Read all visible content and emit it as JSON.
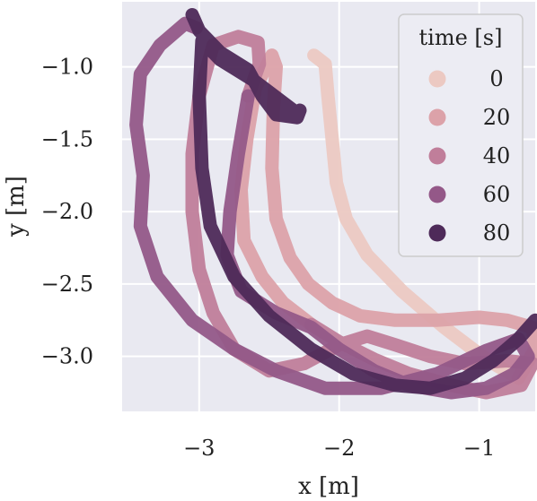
{
  "chart_data": {
    "type": "scatter",
    "title": "",
    "xlabel": "x [m]",
    "ylabel": "y [m]",
    "xlim": [
      -3.55,
      -0.6
    ],
    "ylim": [
      -3.38,
      -0.55
    ],
    "grid": true,
    "background": "#e9e9f1",
    "xticks": [
      {
        "value": -3,
        "label": "−3"
      },
      {
        "value": -2,
        "label": "−2"
      },
      {
        "value": -1,
        "label": "−1"
      }
    ],
    "yticks": [
      {
        "value": -1.0,
        "label": "−1.0"
      },
      {
        "value": -1.5,
        "label": "−1.5"
      },
      {
        "value": -2.0,
        "label": "−2.0"
      },
      {
        "value": -2.5,
        "label": "−2.5"
      },
      {
        "value": -3.0,
        "label": "−3.0"
      }
    ],
    "legend": {
      "title": "time [s]",
      "placement": "top-right",
      "entries": [
        {
          "label": "0",
          "color": "#ecc9c2"
        },
        {
          "label": "20",
          "color": "#dca2a9"
        },
        {
          "label": "40",
          "color": "#c07e9a"
        },
        {
          "label": "60",
          "color": "#945888"
        },
        {
          "label": "80",
          "color": "#4e2a59"
        }
      ]
    },
    "series": [
      {
        "color": "#ecc9c2",
        "points": [
          [
            -2.18,
            -0.92
          ],
          [
            -2.1,
            -0.98
          ],
          [
            -2.08,
            -1.2
          ],
          [
            -2.05,
            -1.5
          ],
          [
            -2.02,
            -1.8
          ],
          [
            -1.95,
            -2.05
          ],
          [
            -1.8,
            -2.3
          ],
          [
            -1.55,
            -2.55
          ],
          [
            -1.25,
            -2.8
          ],
          [
            -0.95,
            -3.02
          ],
          [
            -0.72,
            -3.15
          ]
        ]
      },
      {
        "color": "#dca2a9",
        "points": [
          [
            -0.72,
            -3.15
          ],
          [
            -0.6,
            -2.95
          ],
          [
            -0.62,
            -2.8
          ],
          [
            -0.8,
            -2.75
          ],
          [
            -1.0,
            -2.73
          ],
          [
            -1.3,
            -2.75
          ],
          [
            -1.6,
            -2.75
          ],
          [
            -1.85,
            -2.72
          ],
          [
            -2.05,
            -2.63
          ],
          [
            -2.22,
            -2.5
          ],
          [
            -2.35,
            -2.32
          ],
          [
            -2.45,
            -2.05
          ],
          [
            -2.48,
            -1.7
          ],
          [
            -2.47,
            -1.3
          ],
          [
            -2.45,
            -1.0
          ],
          [
            -2.48,
            -0.92
          ],
          [
            -2.6,
            -1.15
          ],
          [
            -2.66,
            -1.5
          ],
          [
            -2.7,
            -1.85
          ],
          [
            -2.68,
            -2.2
          ],
          [
            -2.55,
            -2.45
          ],
          [
            -2.4,
            -2.63
          ],
          [
            -2.2,
            -2.78
          ]
        ]
      },
      {
        "color": "#c07e9a",
        "points": [
          [
            -2.2,
            -2.78
          ],
          [
            -2.0,
            -2.9
          ],
          [
            -1.75,
            -3.02
          ],
          [
            -1.5,
            -3.12
          ],
          [
            -1.2,
            -3.2
          ],
          [
            -0.95,
            -3.25
          ],
          [
            -0.7,
            -3.2
          ],
          [
            -0.62,
            -3.05
          ],
          [
            -0.8,
            -3.03
          ],
          [
            -1.1,
            -3.05
          ],
          [
            -1.35,
            -3.0
          ],
          [
            -1.6,
            -2.92
          ],
          [
            -1.8,
            -2.86
          ],
          [
            -2.0,
            -2.92
          ],
          [
            -2.25,
            -3.05
          ],
          [
            -2.5,
            -3.1
          ],
          [
            -2.75,
            -2.95
          ],
          [
            -2.9,
            -2.7
          ],
          [
            -3.0,
            -2.4
          ],
          [
            -3.05,
            -2.0
          ],
          [
            -3.05,
            -1.6
          ],
          [
            -3.0,
            -1.2
          ],
          [
            -2.9,
            -0.85
          ],
          [
            -2.72,
            -0.79
          ],
          [
            -2.58,
            -0.83
          ],
          [
            -2.57,
            -0.98
          ],
          [
            -2.65,
            -1.2
          ]
        ]
      },
      {
        "color": "#945888",
        "points": [
          [
            -2.65,
            -1.2
          ],
          [
            -2.72,
            -1.6
          ],
          [
            -2.78,
            -2.0
          ],
          [
            -2.8,
            -2.3
          ],
          [
            -2.7,
            -2.55
          ],
          [
            -2.45,
            -2.7
          ],
          [
            -2.2,
            -2.8
          ],
          [
            -2.0,
            -2.95
          ],
          [
            -1.75,
            -3.1
          ],
          [
            -1.5,
            -3.2
          ],
          [
            -1.2,
            -3.25
          ],
          [
            -0.95,
            -3.22
          ],
          [
            -0.75,
            -3.12
          ],
          [
            -0.65,
            -3.0
          ],
          [
            -0.72,
            -2.88
          ],
          [
            -0.95,
            -2.96
          ],
          [
            -1.3,
            -3.12
          ],
          [
            -1.7,
            -3.22
          ],
          [
            -2.1,
            -3.22
          ],
          [
            -2.45,
            -3.1
          ],
          [
            -2.75,
            -2.95
          ],
          [
            -3.05,
            -2.75
          ],
          [
            -3.3,
            -2.45
          ],
          [
            -3.42,
            -2.1
          ],
          [
            -3.4,
            -1.75
          ],
          [
            -3.45,
            -1.4
          ],
          [
            -3.42,
            -1.05
          ],
          [
            -3.28,
            -0.85
          ],
          [
            -3.1,
            -0.7
          ],
          [
            -3.02,
            -0.73
          ]
        ]
      },
      {
        "color": "#4e2a59",
        "points": [
          [
            -3.05,
            -0.64
          ],
          [
            -3.0,
            -0.75
          ],
          [
            -2.85,
            -0.9
          ],
          [
            -2.65,
            -1.02
          ],
          [
            -2.55,
            -1.2
          ],
          [
            -2.45,
            -1.33
          ],
          [
            -2.3,
            -1.35
          ],
          [
            -2.28,
            -1.3
          ],
          [
            -2.3,
            -1.32
          ],
          [
            -2.6,
            -1.1
          ],
          [
            -2.85,
            -0.95
          ],
          [
            -2.98,
            -0.82
          ],
          [
            -3.0,
            -1.2
          ],
          [
            -2.98,
            -1.7
          ],
          [
            -2.92,
            -2.1
          ],
          [
            -2.75,
            -2.45
          ],
          [
            -2.5,
            -2.72
          ],
          [
            -2.2,
            -2.95
          ],
          [
            -1.9,
            -3.12
          ],
          [
            -1.6,
            -3.2
          ],
          [
            -1.35,
            -3.22
          ],
          [
            -1.1,
            -3.15
          ],
          [
            -0.9,
            -3.03
          ],
          [
            -0.72,
            -2.88
          ],
          [
            -0.6,
            -2.75
          ]
        ]
      }
    ]
  }
}
